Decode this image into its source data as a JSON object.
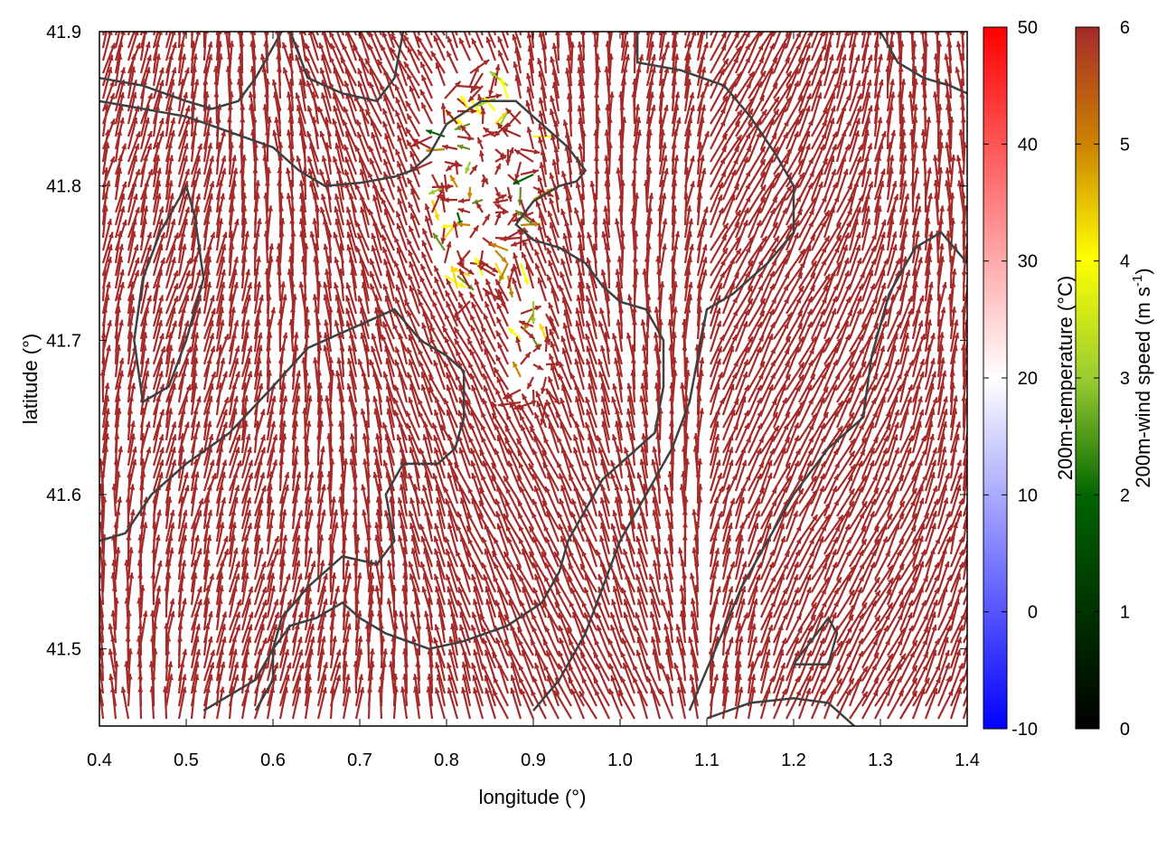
{
  "chart_data": {
    "type": "vector-field",
    "xlabel": "longitude (°)",
    "ylabel": "latitude (°)",
    "xlim": [
      0.4,
      1.4
    ],
    "ylim": [
      41.45,
      41.9
    ],
    "xticks": [
      "0.4",
      "0.5",
      "0.6",
      "0.7",
      "0.8",
      "0.9",
      "1.0",
      "1.1",
      "1.2",
      "1.3",
      "1.4"
    ],
    "xtick_values": [
      0.4,
      0.5,
      0.6,
      0.7,
      0.8,
      0.9,
      1.0,
      1.1,
      1.2,
      1.3,
      1.4
    ],
    "yticks": [
      "41.5",
      "41.6",
      "41.7",
      "41.8",
      "41.9"
    ],
    "ytick_values": [
      41.5,
      41.6,
      41.7,
      41.8,
      41.9
    ],
    "temperature_colorbar": {
      "label": "200m-temperature (°C)",
      "range": [
        -10,
        50
      ],
      "ticks": [
        "-10",
        "0",
        "10",
        "20",
        "30",
        "40",
        "50"
      ],
      "tick_values": [
        -10,
        0,
        10,
        20,
        30,
        40,
        50
      ],
      "colors": [
        "#0000ff",
        "#ffffff",
        "#ff0000"
      ]
    },
    "windspeed_colorbar": {
      "label_main": "200m-wind speed (m s",
      "label_sup": "-1",
      "label_end": ")",
      "range": [
        0,
        6
      ],
      "ticks": [
        "0",
        "1",
        "2",
        "3",
        "4",
        "5",
        "6"
      ],
      "tick_values": [
        0,
        1,
        2,
        3,
        4,
        5,
        6
      ],
      "colors": [
        "#000000",
        "#006400",
        "#9acd32",
        "#ffff00",
        "#cd8500",
        "#a52a2a"
      ]
    },
    "vector_color": "#a52a2a",
    "contour_color": "#404040",
    "contours": [
      [
        [
          0.4,
          41.87
        ],
        [
          0.45,
          41.865
        ],
        [
          0.5,
          41.855
        ],
        [
          0.53,
          41.85
        ],
        [
          0.56,
          41.855
        ],
        [
          0.58,
          41.87
        ],
        [
          0.6,
          41.89
        ],
        [
          0.61,
          41.9
        ]
      ],
      [
        [
          0.4,
          41.855
        ],
        [
          0.45,
          41.85
        ],
        [
          0.5,
          41.845
        ],
        [
          0.55,
          41.835
        ],
        [
          0.6,
          41.825
        ],
        [
          0.63,
          41.81
        ],
        [
          0.66,
          41.8
        ],
        [
          0.7,
          41.802
        ],
        [
          0.74,
          41.806
        ],
        [
          0.76,
          41.81
        ],
        [
          0.78,
          41.82
        ],
        [
          0.8,
          41.84
        ],
        [
          0.84,
          41.855
        ],
        [
          0.88,
          41.855
        ],
        [
          0.9,
          41.845
        ],
        [
          0.92,
          41.835
        ],
        [
          0.94,
          41.825
        ],
        [
          0.96,
          41.81
        ],
        [
          0.95,
          41.803
        ],
        [
          0.93,
          41.8
        ],
        [
          0.9,
          41.79
        ],
        [
          0.88,
          41.775
        ],
        [
          0.9,
          41.765
        ],
        [
          0.93,
          41.76
        ],
        [
          0.96,
          41.75
        ],
        [
          0.98,
          41.735
        ],
        [
          1.0,
          41.725
        ],
        [
          1.03,
          41.72
        ],
        [
          1.05,
          41.7
        ],
        [
          1.05,
          41.67
        ],
        [
          1.04,
          41.64
        ],
        [
          1.0,
          41.62
        ],
        [
          0.98,
          41.61
        ],
        [
          0.96,
          41.59
        ],
        [
          0.94,
          41.57
        ],
        [
          0.93,
          41.55
        ],
        [
          0.91,
          41.53
        ],
        [
          0.87,
          41.515
        ],
        [
          0.82,
          41.505
        ],
        [
          0.78,
          41.5
        ],
        [
          0.73,
          41.51
        ],
        [
          0.7,
          41.52
        ],
        [
          0.68,
          41.53
        ],
        [
          0.65,
          41.52
        ],
        [
          0.62,
          41.515
        ],
        [
          0.6,
          41.5
        ],
        [
          0.58,
          41.48
        ],
        [
          0.55,
          41.47
        ],
        [
          0.52,
          41.46
        ]
      ],
      [
        [
          0.4,
          41.57
        ],
        [
          0.43,
          41.575
        ],
        [
          0.46,
          41.6
        ],
        [
          0.5,
          41.62
        ],
        [
          0.55,
          41.64
        ],
        [
          0.6,
          41.67
        ],
        [
          0.64,
          41.695
        ],
        [
          0.7,
          41.71
        ],
        [
          0.74,
          41.72
        ],
        [
          0.77,
          41.7
        ],
        [
          0.8,
          41.69
        ],
        [
          0.82,
          41.68
        ],
        [
          0.82,
          41.65
        ],
        [
          0.81,
          41.63
        ],
        [
          0.79,
          41.62
        ],
        [
          0.75,
          41.62
        ],
        [
          0.73,
          41.6
        ],
        [
          0.74,
          41.57
        ],
        [
          0.72,
          41.555
        ],
        [
          0.68,
          41.56
        ],
        [
          0.64,
          41.54
        ],
        [
          0.61,
          41.52
        ],
        [
          0.6,
          41.5
        ],
        [
          0.6,
          41.48
        ],
        [
          0.58,
          41.46
        ]
      ],
      [
        [
          0.62,
          41.9
        ],
        [
          0.64,
          41.87
        ],
        [
          0.68,
          41.86
        ],
        [
          0.72,
          41.855
        ],
        [
          0.74,
          41.87
        ],
        [
          0.75,
          41.9
        ]
      ],
      [
        [
          0.5,
          41.8
        ],
        [
          0.51,
          41.78
        ],
        [
          0.52,
          41.74
        ],
        [
          0.5,
          41.7
        ],
        [
          0.48,
          41.67
        ],
        [
          0.45,
          41.66
        ],
        [
          0.44,
          41.7
        ],
        [
          0.45,
          41.74
        ],
        [
          0.47,
          41.77
        ],
        [
          0.49,
          41.79
        ],
        [
          0.5,
          41.8
        ]
      ],
      [
        [
          1.02,
          41.9
        ],
        [
          1.02,
          41.88
        ],
        [
          1.07,
          41.875
        ],
        [
          1.12,
          41.865
        ],
        [
          1.15,
          41.845
        ],
        [
          1.18,
          41.82
        ],
        [
          1.2,
          41.8
        ],
        [
          1.2,
          41.77
        ],
        [
          1.17,
          41.75
        ],
        [
          1.13,
          41.73
        ],
        [
          1.1,
          41.72
        ],
        [
          1.09,
          41.69
        ],
        [
          1.08,
          41.66
        ],
        [
          1.06,
          41.63
        ],
        [
          1.03,
          41.6
        ],
        [
          1.0,
          41.57
        ],
        [
          0.98,
          41.54
        ],
        [
          0.96,
          41.51
        ],
        [
          0.93,
          41.48
        ],
        [
          0.9,
          41.46
        ]
      ],
      [
        [
          1.3,
          41.9
        ],
        [
          1.32,
          41.88
        ],
        [
          1.35,
          41.87
        ],
        [
          1.38,
          41.865
        ],
        [
          1.4,
          41.86
        ]
      ],
      [
        [
          1.4,
          41.75
        ],
        [
          1.37,
          41.77
        ],
        [
          1.34,
          41.76
        ],
        [
          1.31,
          41.73
        ],
        [
          1.29,
          41.69
        ],
        [
          1.28,
          41.65
        ],
        [
          1.24,
          41.63
        ],
        [
          1.2,
          41.6
        ],
        [
          1.17,
          41.57
        ],
        [
          1.14,
          41.54
        ],
        [
          1.11,
          41.5
        ],
        [
          1.08,
          41.46
        ]
      ],
      [
        [
          1.2,
          41.49
        ],
        [
          1.24,
          41.49
        ],
        [
          1.25,
          41.51
        ],
        [
          1.24,
          41.52
        ],
        [
          1.22,
          41.505
        ],
        [
          1.2,
          41.49
        ]
      ],
      [
        [
          1.1,
          41.455
        ],
        [
          1.15,
          41.465
        ],
        [
          1.2,
          41.468
        ],
        [
          1.24,
          41.465
        ],
        [
          1.27,
          41.45
        ]
      ]
    ]
  }
}
